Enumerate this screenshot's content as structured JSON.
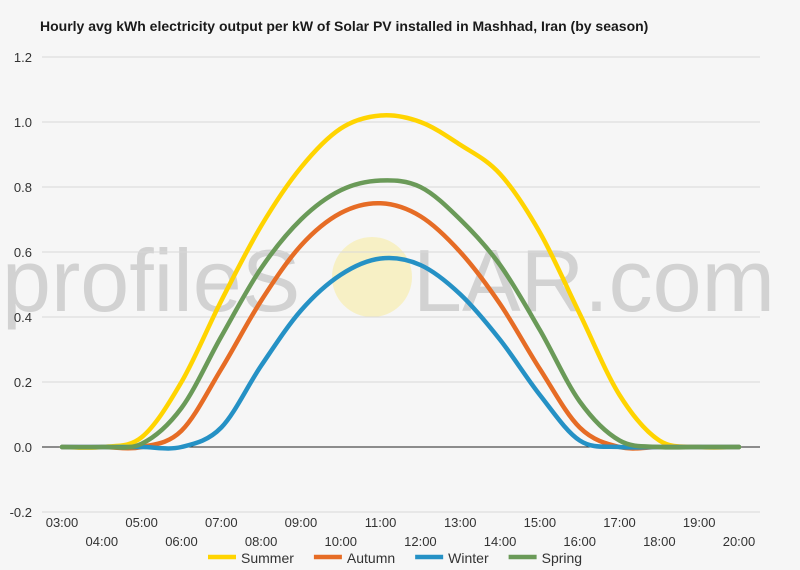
{
  "title": "Hourly avg kWh electricity output per kW of Solar PV installed in Mashhad, Iran (by season)",
  "watermark": {
    "text_left": "profileS",
    "text_right": "LAR.com"
  },
  "chart_data": {
    "type": "line",
    "title": "Hourly avg kWh electricity output per kW of Solar PV installed in Mashhad, Iran (by season)",
    "xlabel": "",
    "ylabel": "",
    "ylim": [
      -0.2,
      1.2
    ],
    "yticks": [
      -0.2,
      0.0,
      0.2,
      0.4,
      0.6,
      0.8,
      1.0,
      1.2
    ],
    "ytick_labels": [
      "-0.2",
      "0.0",
      "0.2",
      "0.4",
      "0.6",
      "0.8",
      "1.0",
      "1.2"
    ],
    "grid": true,
    "legend_position": "bottom",
    "x": [
      "03:00",
      "04:00",
      "05:00",
      "06:00",
      "07:00",
      "08:00",
      "09:00",
      "10:00",
      "11:00",
      "12:00",
      "13:00",
      "14:00",
      "15:00",
      "16:00",
      "17:00",
      "18:00",
      "19:00",
      "20:00"
    ],
    "series": [
      {
        "name": "Summer",
        "color": "#ffd400",
        "values": [
          0.0,
          0.0,
          0.03,
          0.2,
          0.45,
          0.68,
          0.86,
          0.98,
          1.02,
          1.0,
          0.93,
          0.84,
          0.66,
          0.41,
          0.16,
          0.02,
          0.0,
          0.0
        ]
      },
      {
        "name": "Autumn",
        "color": "#e66c25",
        "values": [
          0.0,
          0.0,
          0.0,
          0.05,
          0.24,
          0.45,
          0.62,
          0.72,
          0.75,
          0.71,
          0.6,
          0.44,
          0.24,
          0.06,
          0.0,
          0.0,
          0.0,
          0.0
        ]
      },
      {
        "name": "Winter",
        "color": "#2591c5",
        "values": [
          0.0,
          0.0,
          0.0,
          0.0,
          0.06,
          0.25,
          0.42,
          0.53,
          0.58,
          0.56,
          0.47,
          0.33,
          0.16,
          0.02,
          0.0,
          0.0,
          0.0,
          0.0
        ]
      },
      {
        "name": "Spring",
        "color": "#6a9a58",
        "values": [
          0.0,
          0.0,
          0.01,
          0.12,
          0.34,
          0.55,
          0.7,
          0.79,
          0.82,
          0.8,
          0.7,
          0.56,
          0.36,
          0.14,
          0.02,
          0.0,
          0.0,
          0.0
        ]
      }
    ]
  }
}
